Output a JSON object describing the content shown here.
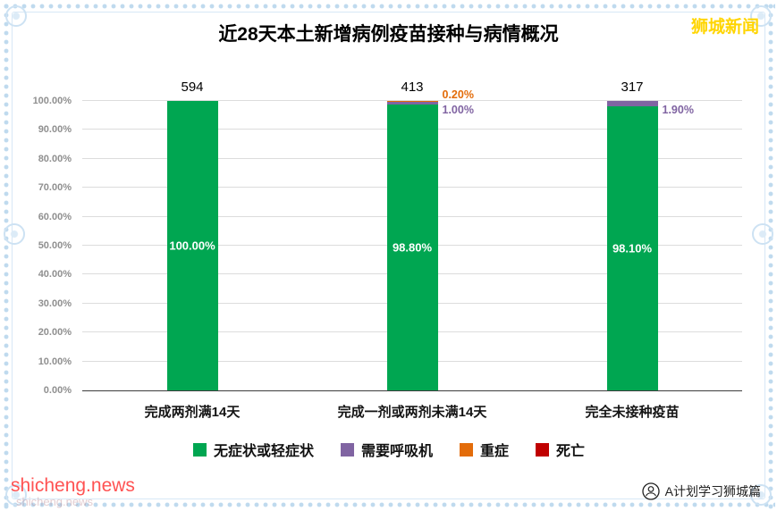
{
  "page": {
    "brand": "狮城新闻",
    "watermark": "shicheng.news",
    "watermark_faint": "shicheng.news",
    "footer_account": "A计划学习狮城篇",
    "icons": {
      "footer": "wechat-official-account"
    }
  },
  "chart_data": {
    "type": "bar",
    "stacked": true,
    "title": "近28天本土新增病例疫苗接种与病情概况",
    "categories": [
      "完成两剂满14天",
      "完成一剂或两剂未满14天",
      "完全未接种疫苗"
    ],
    "totals": [
      "594",
      "413",
      "317"
    ],
    "series": [
      {
        "name": "无症状或轻症状",
        "color": "#00a651",
        "values": [
          100.0,
          98.8,
          98.1
        ]
      },
      {
        "name": "需要呼吸机",
        "color": "#8064a2",
        "values": [
          0,
          1.0,
          1.9
        ]
      },
      {
        "name": "重症",
        "color": "#e36c0a",
        "values": [
          0,
          0.2,
          0
        ]
      },
      {
        "name": "死亡",
        "color": "#c00000",
        "values": [
          0,
          0,
          0
        ]
      }
    ],
    "bar_inner_labels": [
      "100.00%",
      "98.80%",
      "98.10%"
    ],
    "callouts": [
      {
        "bar": 1,
        "row": 0,
        "text": "0.20%",
        "color": "#e36c0a"
      },
      {
        "bar": 1,
        "row": 1,
        "text": "1.00%",
        "color": "#8064a2"
      },
      {
        "bar": 2,
        "row": 1,
        "text": "1.90%",
        "color": "#8064a2"
      }
    ],
    "ylim": [
      0,
      100
    ],
    "ytick_step": 10,
    "ytick_labels": [
      "0.00%",
      "10.00%",
      "20.00%",
      "30.00%",
      "40.00%",
      "50.00%",
      "60.00%",
      "70.00%",
      "80.00%",
      "90.00%",
      "100.00%"
    ],
    "grid": true,
    "legend_position": "bottom"
  }
}
